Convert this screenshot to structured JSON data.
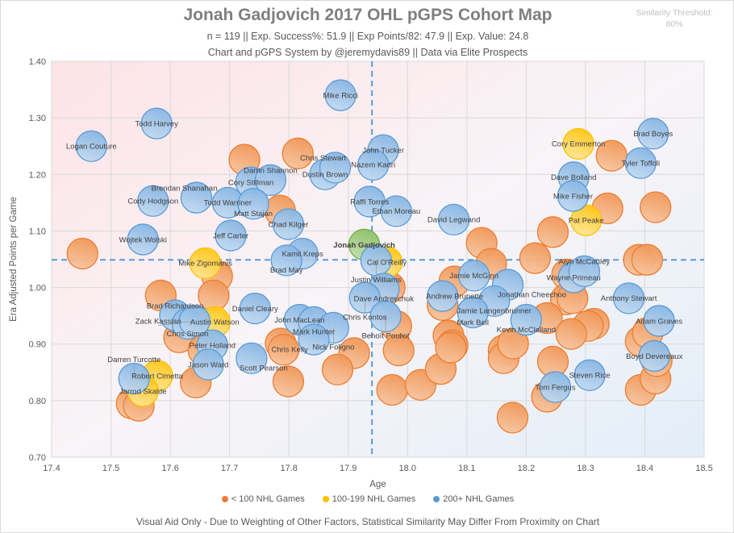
{
  "header": {
    "title": "Jonah Gadjovich  2017 OHL pGPS Cohort Map",
    "stats": "n = 119 || Exp. Success%: 51.9 || Exp Points/82: 47.9 || Exp. Value: 24.8",
    "credit": "Chart and pGPS System by @jeremydavis89  || Data via Elite Prospects",
    "threshold_label": "Similarity Threshold:",
    "threshold_value": "80%"
  },
  "footer": "Visual Aid Only - Due to Weighting of Other Factors, Statistical Similarity May Differ From Proximity on Chart",
  "colors": {
    "lt100": "#ED7D31",
    "100-199": "#FFC000",
    "200+": "#5B9BD5",
    "subject": "#70AD47"
  },
  "chart_data": {
    "type": "scatter",
    "xlabel": "Age",
    "ylabel": "Era Adjusted Points per Game",
    "xlim": [
      17.4,
      18.5
    ],
    "ylim": [
      0.7,
      1.4
    ],
    "xticks": [
      "17.4",
      "17.5",
      "17.6",
      "17.7",
      "17.8",
      "17.9",
      "18.0",
      "18.1",
      "18.2",
      "18.3",
      "18.4",
      "18.5"
    ],
    "yticks": [
      "0.70",
      "0.80",
      "0.90",
      "1.00",
      "1.10",
      "1.20",
      "1.30",
      "1.40"
    ],
    "grid": true,
    "reference_lines": {
      "x": 17.94,
      "y": 1.049
    },
    "legend": {
      "position": "bottom",
      "entries": [
        {
          "group": "lt100",
          "label": "< 100 NHL Games"
        },
        {
          "group": "100-199",
          "label": "100-199 NHL Games"
        },
        {
          "group": "200+",
          "label": "200+ NHL Games"
        }
      ]
    },
    "points": [
      [
        "",
        17.452,
        1.06,
        "lt100"
      ],
      [
        "",
        17.725,
        1.226,
        "lt100"
      ],
      [
        "",
        17.815,
        1.237,
        "lt100"
      ],
      [
        "",
        17.785,
        1.136,
        "lt100"
      ],
      [
        "",
        17.679,
        1.02,
        "lt100"
      ],
      [
        "",
        17.584,
        0.986,
        "lt100"
      ],
      [
        "",
        17.673,
        0.986,
        "lt100"
      ],
      [
        "",
        17.615,
        0.912,
        "lt100"
      ],
      [
        "",
        17.656,
        0.889,
        "lt100"
      ],
      [
        "",
        17.643,
        0.832,
        "lt100"
      ],
      [
        "",
        17.535,
        0.795,
        "lt100"
      ],
      [
        "",
        17.547,
        0.791,
        "lt100"
      ],
      [
        "",
        17.786,
        0.901,
        "lt100"
      ],
      [
        "",
        17.791,
        0.89,
        "lt100"
      ],
      [
        "",
        17.799,
        0.834,
        "lt100"
      ],
      [
        "",
        17.91,
        0.884,
        "lt100"
      ],
      [
        "",
        17.882,
        0.855,
        "lt100"
      ],
      [
        "",
        18.344,
        1.233,
        "lt100"
      ],
      [
        "",
        18.337,
        1.14,
        "lt100"
      ],
      [
        "",
        18.418,
        1.142,
        "lt100"
      ],
      [
        "",
        18.245,
        1.098,
        "lt100"
      ],
      [
        "",
        18.125,
        1.079,
        "lt100"
      ],
      [
        "",
        18.141,
        1.042,
        "lt100"
      ],
      [
        "",
        18.215,
        1.052,
        "lt100"
      ],
      [
        "",
        18.39,
        1.049,
        "lt100"
      ],
      [
        "",
        18.404,
        1.049,
        "lt100"
      ],
      [
        "",
        18.269,
        1.023,
        "lt100"
      ],
      [
        "",
        18.267,
        0.979,
        "lt100"
      ],
      [
        "",
        18.278,
        0.981,
        "lt100"
      ],
      [
        "",
        18.314,
        0.936,
        "lt100"
      ],
      [
        "",
        18.304,
        0.932,
        "lt100"
      ],
      [
        "",
        18.059,
        0.969,
        "lt100"
      ],
      [
        "",
        18.079,
        1.011,
        "lt100"
      ],
      [
        "",
        18.069,
        0.915,
        "lt100"
      ],
      [
        "",
        18.076,
        0.898,
        "lt100"
      ],
      [
        "",
        18.162,
        0.889,
        "lt100"
      ],
      [
        "",
        18.235,
        0.946,
        "lt100"
      ],
      [
        "",
        18.276,
        0.918,
        "lt100"
      ],
      [
        "",
        17.981,
        0.932,
        "lt100"
      ],
      [
        "",
        17.97,
        1.0,
        "lt100"
      ],
      [
        "",
        17.985,
        0.889,
        "lt100"
      ],
      [
        "",
        17.974,
        0.819,
        "lt100"
      ],
      [
        "",
        18.022,
        0.828,
        "lt100"
      ],
      [
        "",
        18.056,
        0.856,
        "lt100"
      ],
      [
        "",
        18.073,
        0.894,
        "lt100"
      ],
      [
        "",
        18.162,
        0.875,
        "lt100"
      ],
      [
        "",
        18.178,
        0.901,
        "lt100"
      ],
      [
        "",
        18.177,
        0.77,
        "lt100"
      ],
      [
        "",
        18.245,
        0.869,
        "lt100"
      ],
      [
        "",
        18.235,
        0.807,
        "lt100"
      ],
      [
        "",
        18.393,
        0.819,
        "lt100"
      ],
      [
        "",
        18.418,
        0.839,
        "lt100"
      ],
      [
        "",
        18.393,
        0.905,
        "lt100"
      ],
      [
        "",
        18.42,
        0.87,
        "lt100"
      ],
      [
        "",
        18.405,
        0.92,
        "lt100"
      ],
      [
        "Mike Zigomanis",
        17.659,
        1.043,
        "100-199"
      ],
      [
        "Austin Watson",
        17.675,
        0.939,
        "100-199"
      ],
      [
        "Robert Cimetta",
        17.578,
        0.844,
        "100-199"
      ],
      [
        "Jarrod Skalde",
        17.554,
        0.817,
        "100-199"
      ],
      [
        "Cory Emmerton",
        18.288,
        1.254,
        "100-199"
      ],
      [
        "Pat Peake",
        18.301,
        1.119,
        "100-199"
      ],
      [
        "Cal O'Reilly",
        17.965,
        1.045,
        "100-199"
      ],
      [
        "Jonah Gadjovich",
        17.927,
        1.076,
        "subject"
      ],
      [
        "Mike Ricci",
        17.887,
        1.34,
        "200+"
      ],
      [
        "Todd Harvey",
        17.577,
        1.29,
        "200+"
      ],
      [
        "Logan Couture",
        17.467,
        1.25,
        "200+"
      ],
      [
        "John Tucker",
        17.959,
        1.243,
        "200+"
      ],
      [
        "Nazem Kadri",
        17.942,
        1.217,
        "200+"
      ],
      [
        "Dustin Brown",
        17.861,
        1.2,
        "200+"
      ],
      [
        "Chris Stewart",
        17.878,
        1.212,
        "200+"
      ],
      [
        "Cory Stillman",
        17.736,
        1.186,
        "200+"
      ],
      [
        "Darrin Shannon",
        17.769,
        1.19,
        "200+"
      ],
      [
        "Cody Hodgson",
        17.571,
        1.153,
        "200+"
      ],
      [
        "Brendan Shanahan",
        17.644,
        1.159,
        "200+"
      ],
      [
        "Todd Warriner",
        17.697,
        1.15,
        "200+"
      ],
      [
        "Matt Stajan",
        17.74,
        1.148,
        "200+"
      ],
      [
        "Raffi Torres",
        17.936,
        1.152,
        "200+"
      ],
      [
        "Ethan Moreau",
        17.981,
        1.135,
        "200+"
      ],
      [
        "Chad Kilger",
        17.799,
        1.112,
        "200+"
      ],
      [
        "David Legwand",
        18.078,
        1.12,
        "200+"
      ],
      [
        "Jeff Carter",
        17.702,
        1.092,
        "200+"
      ],
      [
        "Wojtek Wolski",
        17.554,
        1.085,
        "200+"
      ],
      [
        "Kamil Kreps",
        17.823,
        1.06,
        "200+"
      ],
      [
        "Brad May",
        17.796,
        1.048,
        "200+"
      ],
      [
        "Justin Williams",
        17.947,
        1.048,
        "200+"
      ],
      [
        "Dave Andreychuk",
        17.96,
        0.998,
        "200+"
      ],
      [
        "Chris Kontos",
        17.928,
        0.982,
        "200+"
      ],
      [
        "Benoît Pouliot",
        17.963,
        0.949,
        "200+"
      ],
      [
        "Jamie McGinn",
        18.112,
        1.021,
        "200+"
      ],
      [
        "Andrew Brunette",
        18.059,
        0.985,
        "200+"
      ],
      [
        "Jonathan Cheechoo",
        18.169,
        1.005,
        "200+"
      ],
      [
        "Jamie Langenbrunner",
        18.146,
        0.976,
        "200+"
      ],
      [
        "Mark Bell",
        18.11,
        0.956,
        "200+"
      ],
      [
        "Kevin McClelland",
        18.2,
        0.943,
        "200+"
      ],
      [
        "Wayne Primeau",
        18.28,
        1.018,
        "200+"
      ],
      [
        "Alyn McCauley",
        18.298,
        1.029,
        "200+"
      ],
      [
        "Anthony Stewart",
        18.373,
        0.981,
        "200+"
      ],
      [
        "Adam Graves",
        18.424,
        0.941,
        "200+"
      ],
      [
        "Boyd Devereaux",
        18.416,
        0.879,
        "200+"
      ],
      [
        "Steven Rice",
        18.307,
        0.845,
        "200+"
      ],
      [
        "Tom Fergus",
        18.249,
        0.824,
        "200+"
      ],
      [
        "Dave Bolland",
        18.28,
        1.195,
        "200+"
      ],
      [
        "Mike Fisher",
        18.279,
        1.162,
        "200+"
      ],
      [
        "Brad Boyes",
        18.414,
        1.272,
        "200+"
      ],
      [
        "Tyler Toffoli",
        18.393,
        1.22,
        "200+"
      ],
      [
        "Daniel Cleary",
        17.743,
        0.963,
        "200+"
      ],
      [
        "John MacLean",
        17.818,
        0.943,
        "200+"
      ],
      [
        "Mark Hunter",
        17.842,
        0.939,
        "200+"
      ],
      [
        "Nick Foligno",
        17.875,
        0.929,
        "200+"
      ],
      [
        "Chris Kelly",
        17.842,
        0.908,
        "200+"
      ],
      [
        "Brad Richardson",
        17.608,
        0.951,
        "200+"
      ],
      [
        "Chris Simon",
        17.629,
        0.936,
        "200+"
      ],
      [
        "Zack Kassian",
        17.641,
        0.941,
        "200+"
      ],
      [
        "Peter Holland",
        17.671,
        0.898,
        "200+"
      ],
      [
        "Jason Ward",
        17.664,
        0.864,
        "200+"
      ],
      [
        "Scott Pearson",
        17.737,
        0.875,
        "200+"
      ],
      [
        "Darren Turcotte",
        17.539,
        0.839,
        "200+"
      ]
    ]
  }
}
